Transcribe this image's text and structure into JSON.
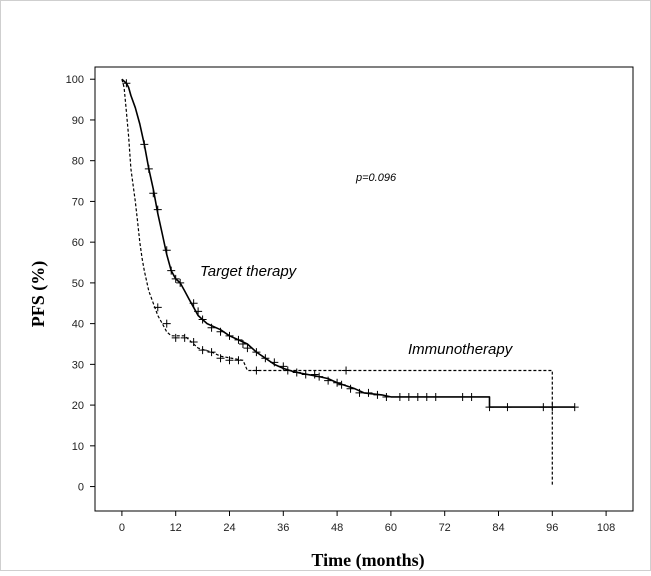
{
  "chart_data": {
    "type": "line",
    "title": "",
    "xlabel": "Time (months)",
    "ylabel": "PFS (%)",
    "xlim": [
      -6,
      114
    ],
    "ylim": [
      -6,
      103
    ],
    "x_ticks": [
      "0",
      "12",
      "24",
      "36",
      "48",
      "60",
      "72",
      "84",
      "96",
      "108"
    ],
    "y_ticks": [
      "0",
      "10",
      "20",
      "30",
      "40",
      "50",
      "60",
      "70",
      "80",
      "90",
      "100"
    ],
    "grid": false,
    "legend": "none",
    "annotations": {
      "p_value": "p=0.096",
      "target_label": "Target therapy",
      "immuno_label": "Immunotherapy"
    },
    "series": [
      {
        "name": "Target therapy",
        "line_style": "solid",
        "color": "#000000",
        "points": [
          [
            0,
            100
          ],
          [
            1,
            99
          ],
          [
            1.5,
            98
          ],
          [
            2,
            96
          ],
          [
            3,
            93
          ],
          [
            4,
            89
          ],
          [
            5,
            84
          ],
          [
            6,
            78
          ],
          [
            7,
            73
          ],
          [
            8,
            67
          ],
          [
            9,
            62
          ],
          [
            10,
            57
          ],
          [
            11,
            53
          ],
          [
            12,
            51
          ],
          [
            13,
            50
          ],
          [
            14,
            48
          ],
          [
            15,
            46
          ],
          [
            16,
            44
          ],
          [
            17,
            42
          ],
          [
            18,
            41
          ],
          [
            19,
            40
          ],
          [
            20,
            39.5
          ],
          [
            22,
            38.5
          ],
          [
            24,
            37
          ],
          [
            26,
            36
          ],
          [
            28,
            35
          ],
          [
            30,
            33
          ],
          [
            32,
            31.5
          ],
          [
            34,
            30
          ],
          [
            36,
            29
          ],
          [
            38,
            28.3
          ],
          [
            40,
            27.8
          ],
          [
            44,
            27
          ],
          [
            46,
            26.5
          ],
          [
            48,
            25.5
          ],
          [
            52,
            24
          ],
          [
            54,
            23
          ],
          [
            58,
            22.5
          ],
          [
            60,
            22
          ],
          [
            82,
            22
          ],
          [
            82,
            19.5
          ],
          [
            101,
            19.5
          ]
        ],
        "censor_marks": [
          [
            5,
            84
          ],
          [
            6,
            78
          ],
          [
            7,
            72
          ],
          [
            8,
            68
          ],
          [
            10,
            58
          ],
          [
            11,
            53
          ],
          [
            12,
            51
          ],
          [
            13,
            50
          ],
          [
            16,
            45
          ],
          [
            17,
            43
          ],
          [
            18,
            41
          ],
          [
            20,
            39
          ],
          [
            22,
            38
          ],
          [
            24,
            37
          ],
          [
            26,
            36
          ],
          [
            27,
            35
          ],
          [
            28,
            34
          ],
          [
            30,
            33
          ],
          [
            32,
            31.5
          ],
          [
            34,
            30.5
          ],
          [
            36,
            29.5
          ],
          [
            37,
            28.5
          ],
          [
            39,
            28
          ],
          [
            41,
            27.5
          ],
          [
            43,
            27.5
          ],
          [
            44,
            27
          ],
          [
            46,
            26
          ],
          [
            48,
            25.5
          ],
          [
            49,
            25
          ],
          [
            51,
            24
          ],
          [
            53,
            23
          ],
          [
            55,
            23
          ],
          [
            57,
            22.5
          ],
          [
            59,
            22
          ],
          [
            62,
            22
          ],
          [
            64,
            22
          ],
          [
            66,
            22
          ],
          [
            68,
            22
          ],
          [
            70,
            22
          ],
          [
            76,
            22
          ],
          [
            78,
            22
          ],
          [
            82,
            19.5
          ],
          [
            86,
            19.5
          ],
          [
            94,
            19.5
          ],
          [
            96,
            19.5
          ],
          [
            101,
            19.5
          ]
        ]
      },
      {
        "name": "Immunotherapy",
        "line_style": "dashed",
        "color": "#000000",
        "points": [
          [
            0,
            100
          ],
          [
            0.5,
            98
          ],
          [
            1,
            92
          ],
          [
            1.5,
            86
          ],
          [
            2,
            78
          ],
          [
            2.5,
            74
          ],
          [
            3,
            70
          ],
          [
            3.5,
            65
          ],
          [
            4,
            60
          ],
          [
            4.5,
            56
          ],
          [
            5,
            53
          ],
          [
            6,
            48
          ],
          [
            7,
            45
          ],
          [
            8,
            42
          ],
          [
            9,
            40
          ],
          [
            10,
            38
          ],
          [
            11,
            37
          ],
          [
            14,
            37
          ],
          [
            15,
            36
          ],
          [
            17,
            34
          ],
          [
            20,
            33
          ],
          [
            22,
            32
          ],
          [
            27,
            31
          ],
          [
            28,
            28.5
          ],
          [
            96,
            28.5
          ],
          [
            96,
            0
          ]
        ],
        "censor_marks": [
          [
            1,
            99
          ],
          [
            8,
            44
          ],
          [
            10,
            40
          ],
          [
            12,
            36.5
          ],
          [
            14,
            36.5
          ],
          [
            16,
            35.5
          ],
          [
            18,
            33.5
          ],
          [
            20,
            33
          ],
          [
            22,
            31.5
          ],
          [
            24,
            31
          ],
          [
            26,
            31
          ],
          [
            30,
            28.5
          ],
          [
            50,
            28.5
          ]
        ]
      }
    ]
  }
}
